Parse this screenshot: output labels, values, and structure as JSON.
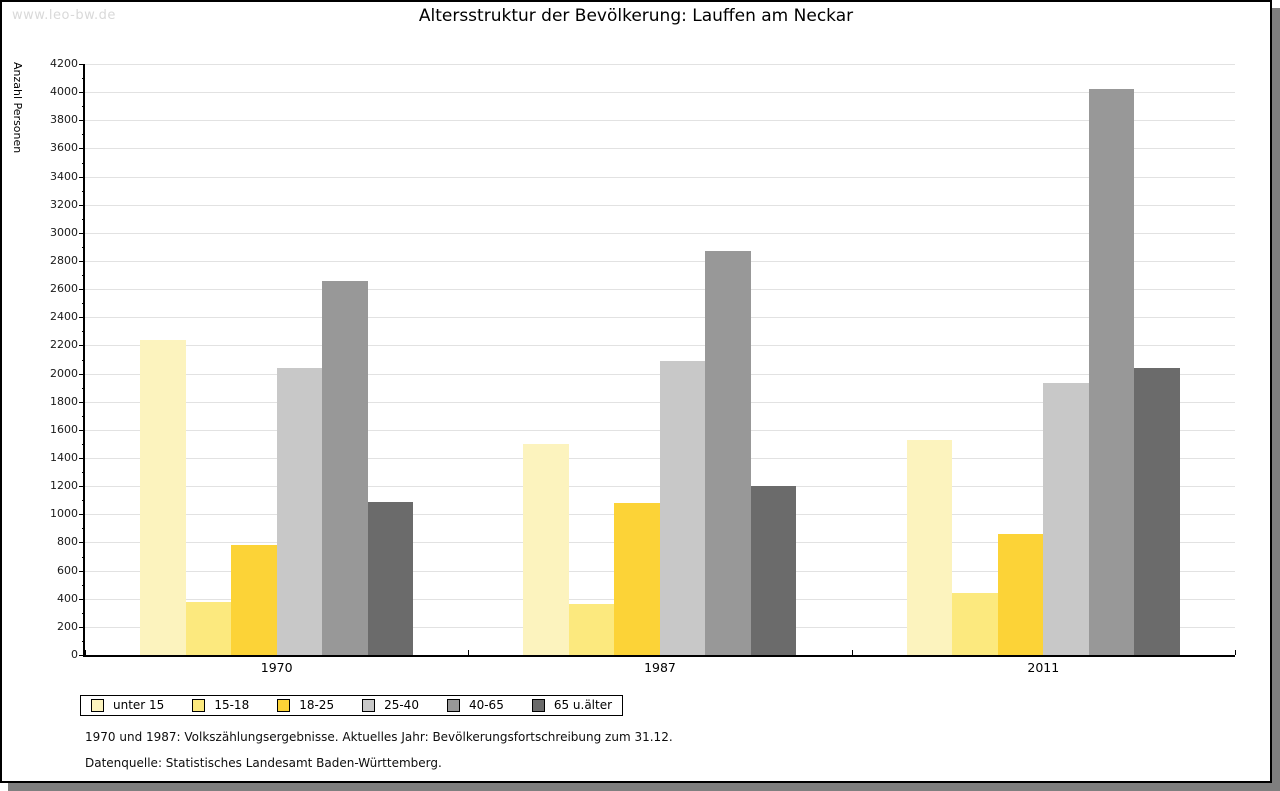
{
  "watermark": "www.leo-bw.de",
  "title": "Altersstruktur der Bevölkerung: Lauffen am Neckar",
  "footnotes": {
    "line1": "1970 und 1987: Volkszählungsergebnisse. Aktuelles Jahr: Bevölkerungsfortschreibung zum 31.12.",
    "line2": "Datenquelle: Statistisches Landesamt Baden-Württemberg."
  },
  "chart_data": {
    "type": "bar",
    "title": "Altersstruktur der Bevölkerung: Lauffen am Neckar",
    "xlabel": "",
    "ylabel": "Anzahl Personen",
    "categories": [
      "1970",
      "1987",
      "2011"
    ],
    "series": [
      {
        "name": "unter 15",
        "color": "#fcf3be",
        "values": [
          2240,
          1500,
          1530
        ]
      },
      {
        "name": "15-18",
        "color": "#fce97e",
        "values": [
          380,
          360,
          440
        ]
      },
      {
        "name": "18-25",
        "color": "#fcd337",
        "values": [
          780,
          1080,
          860
        ]
      },
      {
        "name": "25-40",
        "color": "#c8c8c8",
        "values": [
          2040,
          2090,
          1930
        ]
      },
      {
        "name": "40-65",
        "color": "#989898",
        "values": [
          2660,
          2870,
          4020
        ]
      },
      {
        "name": "65 u.älter",
        "color": "#6b6b6b",
        "values": [
          1090,
          1200,
          2040
        ]
      }
    ],
    "ylim": [
      0,
      4200
    ],
    "ytick_step": 200,
    "ytick_minor_step": 100,
    "yticks": [
      0,
      200,
      400,
      600,
      800,
      1000,
      1200,
      1400,
      1600,
      1800,
      2000,
      2200,
      2400,
      2600,
      2800,
      3000,
      3200,
      3400,
      3600,
      3800,
      4000,
      4200
    ],
    "grid": true,
    "legend_position": "bottom-left",
    "colors": {
      "axis": "#000000",
      "gridline": "#e2e2e2",
      "page_shadow": "#7f7f7f",
      "watermark": "#d9d9d9"
    }
  }
}
